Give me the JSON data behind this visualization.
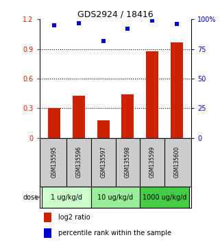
{
  "title": "GDS2924 / 18416",
  "samples": [
    "GSM135595",
    "GSM135596",
    "GSM135597",
    "GSM135598",
    "GSM135599",
    "GSM135600"
  ],
  "log2_ratio": [
    0.3,
    0.43,
    0.18,
    0.44,
    0.88,
    0.97
  ],
  "percentile_rank": [
    95,
    97,
    82,
    92,
    99,
    96
  ],
  "bar_color": "#cc2200",
  "dot_color": "#0000cc",
  "ylim_left": [
    0,
    1.2
  ],
  "ylim_right": [
    0,
    100
  ],
  "yticks_left": [
    0,
    0.3,
    0.6,
    0.9,
    1.2
  ],
  "yticks_right": [
    0,
    25,
    50,
    75,
    100
  ],
  "ytick_labels_left": [
    "0",
    "0.3",
    "0.6",
    "0.9",
    "1.2"
  ],
  "ytick_labels_right": [
    "0",
    "25",
    "50",
    "75",
    "100%"
  ],
  "hlines": [
    0.3,
    0.6,
    0.9
  ],
  "doses": [
    {
      "label": "1 ug/kg/d",
      "cols": [
        0,
        1
      ],
      "color": "#ccffcc"
    },
    {
      "label": "10 ug/kg/d",
      "cols": [
        2,
        3
      ],
      "color": "#99ee99"
    },
    {
      "label": "1000 ug/kg/d",
      "cols": [
        4,
        5
      ],
      "color": "#44cc44"
    }
  ],
  "dose_label": "dose",
  "legend_bar_label": "log2 ratio",
  "legend_dot_label": "percentile rank within the sample",
  "bg_plot": "#ffffff",
  "bg_sample_row": "#cccccc",
  "left_tick_color": "#cc2200",
  "right_tick_color": "#0000cc"
}
